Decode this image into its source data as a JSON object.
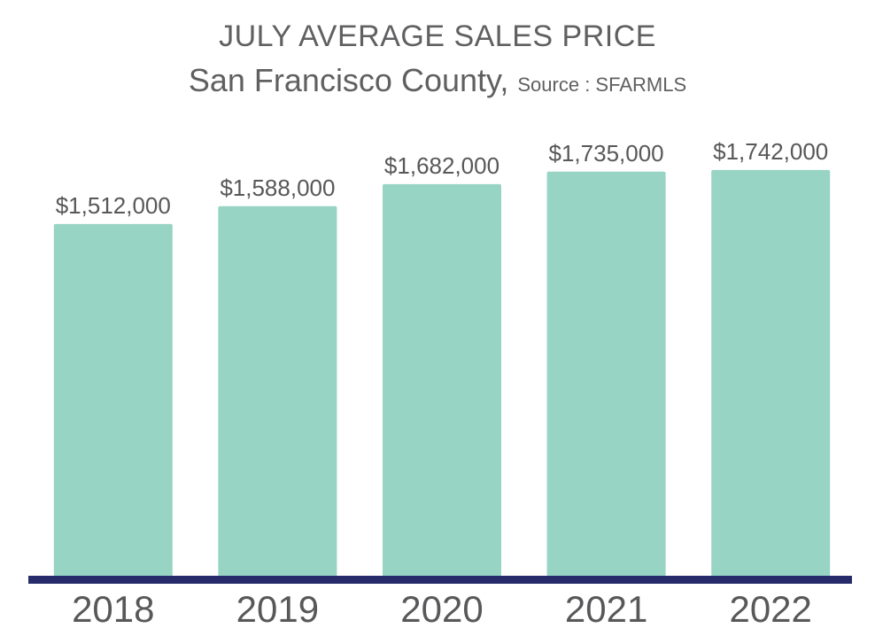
{
  "chart_data": {
    "type": "bar",
    "title": "JULY AVERAGE SALES PRICE",
    "subtitle": "San Francisco County,",
    "source": "Source : SFARMLS",
    "categories": [
      "2018",
      "2019",
      "2020",
      "2021",
      "2022"
    ],
    "values": [
      1512000,
      1588000,
      1682000,
      1735000,
      1742000
    ],
    "value_labels": [
      "$1,512,000",
      "$1,588,000",
      "$1,682,000",
      "$1,735,000",
      "$1,742,000"
    ],
    "xlabel": "",
    "ylabel": "",
    "ylim": [
      0,
      1900000
    ],
    "grid": false,
    "legend": "none",
    "colors": {
      "bar": "#97d4c4",
      "baseline": "#262b6b",
      "text": "#58585a"
    }
  }
}
